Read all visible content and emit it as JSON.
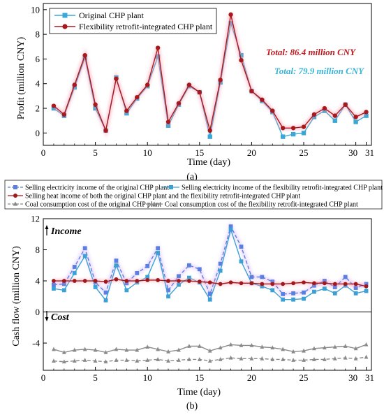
{
  "chart_data": [
    {
      "type": "line",
      "panel_label": "(a)",
      "ylabel": "Profit (million CNY)",
      "xlabel": "Time (day)",
      "xlim": [
        0,
        31.5
      ],
      "ylim": [
        -1,
        10.5
      ],
      "x_ticks": [
        0,
        5,
        10,
        15,
        20,
        25,
        30,
        31
      ],
      "y_ticks": [
        0,
        2,
        4,
        6,
        8,
        10
      ],
      "x": [
        1,
        2,
        3,
        4,
        5,
        6,
        7,
        8,
        9,
        10,
        11,
        12,
        13,
        14,
        15,
        16,
        17,
        18,
        19,
        20,
        21,
        22,
        23,
        24,
        25,
        26,
        27,
        28,
        29,
        30,
        31
      ],
      "series": [
        {
          "name": "Original CHP plant",
          "color": "#3aa8d6",
          "marker": "square",
          "values": [
            2.0,
            1.4,
            3.7,
            6.1,
            2.0,
            0.2,
            4.5,
            1.6,
            2.8,
            3.8,
            6.2,
            0.6,
            2.3,
            3.8,
            3.3,
            -0.3,
            4.1,
            8.9,
            6.3,
            3.4,
            2.6,
            1.7,
            -0.3,
            -0.1,
            0.0,
            1.3,
            1.8,
            1.0,
            2.3,
            0.9,
            1.4
          ]
        },
        {
          "name": "Flexibility retrofit-integrated CHP plant",
          "color": "#a8181c",
          "marker": "circle",
          "values": [
            2.2,
            1.5,
            3.9,
            6.3,
            2.3,
            0.2,
            4.4,
            1.8,
            2.9,
            3.9,
            6.9,
            0.9,
            2.4,
            3.9,
            3.3,
            0.2,
            4.3,
            9.6,
            5.9,
            3.4,
            2.7,
            1.8,
            0.4,
            0.4,
            0.5,
            1.5,
            2.0,
            1.4,
            2.3,
            1.3,
            1.7
          ]
        }
      ],
      "legend_position": "top-left",
      "annotations": [
        {
          "text": "Total: 86.4 million CNY",
          "color": "#c0191e"
        },
        {
          "text": "Total: 79.9 million CNY",
          "color": "#3ab4d6"
        }
      ]
    },
    {
      "type": "line",
      "panel_label": "(b)",
      "ylabel": "Cash flow (million CNY)",
      "xlabel": "Time (day)",
      "xlim": [
        0,
        31.5
      ],
      "ylim": [
        -7.5,
        12
      ],
      "x_ticks": [
        0,
        5,
        10,
        15,
        20,
        25,
        30,
        31
      ],
      "y_ticks": [
        -4,
        0,
        4,
        8,
        12
      ],
      "x": [
        1,
        2,
        3,
        4,
        5,
        6,
        7,
        8,
        9,
        10,
        11,
        12,
        13,
        14,
        15,
        16,
        17,
        18,
        19,
        20,
        21,
        22,
        23,
        24,
        25,
        26,
        27,
        28,
        29,
        30,
        31
      ],
      "income_label": "Income",
      "cost_label": "Cost",
      "series": [
        {
          "name": "Selling electricity income of the original CHP plant",
          "color": "#5b7fe0",
          "style": "dashed",
          "marker": "square",
          "values": [
            3.5,
            3.6,
            5.8,
            8.2,
            3.8,
            2.5,
            6.6,
            3.7,
            5.0,
            5.9,
            8.2,
            2.8,
            4.6,
            6.0,
            5.5,
            2.3,
            6.2,
            11.0,
            8.4,
            4.5,
            4.5,
            3.9,
            2.3,
            2.4,
            2.5,
            3.4,
            4.0,
            3.2,
            4.5,
            3.1,
            3.6
          ]
        },
        {
          "name": "Selling electricity income of the flexibility retrofit-integrated CHP plant",
          "color": "#3aa0d6",
          "style": "solid",
          "marker": "square",
          "values": [
            3.0,
            2.8,
            5.0,
            7.2,
            3.2,
            1.5,
            6.0,
            2.8,
            3.8,
            4.5,
            7.6,
            2.0,
            3.5,
            4.4,
            3.8,
            1.6,
            5.3,
            10.6,
            6.5,
            3.7,
            3.3,
            2.8,
            1.6,
            1.6,
            1.7,
            2.6,
            3.0,
            2.4,
            3.4,
            2.4,
            2.7
          ]
        },
        {
          "name": "Selling heat income of both the original CHP plant and the flexibility retrofit-integrated CHP plant",
          "color": "#a0181c",
          "style": "solid",
          "marker": "circle",
          "values": [
            4.0,
            4.0,
            4.0,
            4.0,
            4.0,
            3.9,
            4.2,
            4.0,
            4.0,
            4.1,
            4.1,
            4.0,
            4.0,
            4.0,
            3.9,
            3.8,
            3.6,
            3.8,
            3.7,
            3.7,
            3.6,
            3.6,
            3.6,
            3.7,
            3.8,
            3.7,
            3.7,
            3.6,
            3.6,
            3.6,
            3.3
          ]
        },
        {
          "name": "Coal consumption cost of the original CHP plant",
          "color": "#8a8a8a",
          "style": "dashed",
          "marker": "triangle",
          "values": [
            -6.3,
            -6.4,
            -6.3,
            -6.2,
            -6.3,
            -6.4,
            -6.2,
            -6.2,
            -6.3,
            -6.2,
            -6.1,
            -6.3,
            -6.2,
            -6.1,
            -6.1,
            -6.3,
            -6.1,
            -5.9,
            -6.0,
            -6.0,
            -6.0,
            -6.1,
            -6.1,
            -6.2,
            -6.2,
            -6.1,
            -6.1,
            -6.0,
            -5.9,
            -6.0,
            -5.8
          ]
        },
        {
          "name": "Coal consumption cost of the flexibility retrofit-integrated CHP plant",
          "color": "#8a8a8a",
          "style": "solid",
          "marker": "triangle",
          "values": [
            -4.8,
            -5.2,
            -4.9,
            -4.8,
            -4.9,
            -5.2,
            -4.8,
            -4.9,
            -4.9,
            -4.5,
            -4.8,
            -5.1,
            -4.9,
            -4.4,
            -4.4,
            -5.0,
            -4.6,
            -4.2,
            -4.3,
            -4.3,
            -4.5,
            -4.6,
            -4.8,
            -5.1,
            -5.0,
            -4.7,
            -4.6,
            -4.5,
            -4.4,
            -4.7,
            -4.2
          ]
        }
      ],
      "legend_position": "top"
    }
  ]
}
